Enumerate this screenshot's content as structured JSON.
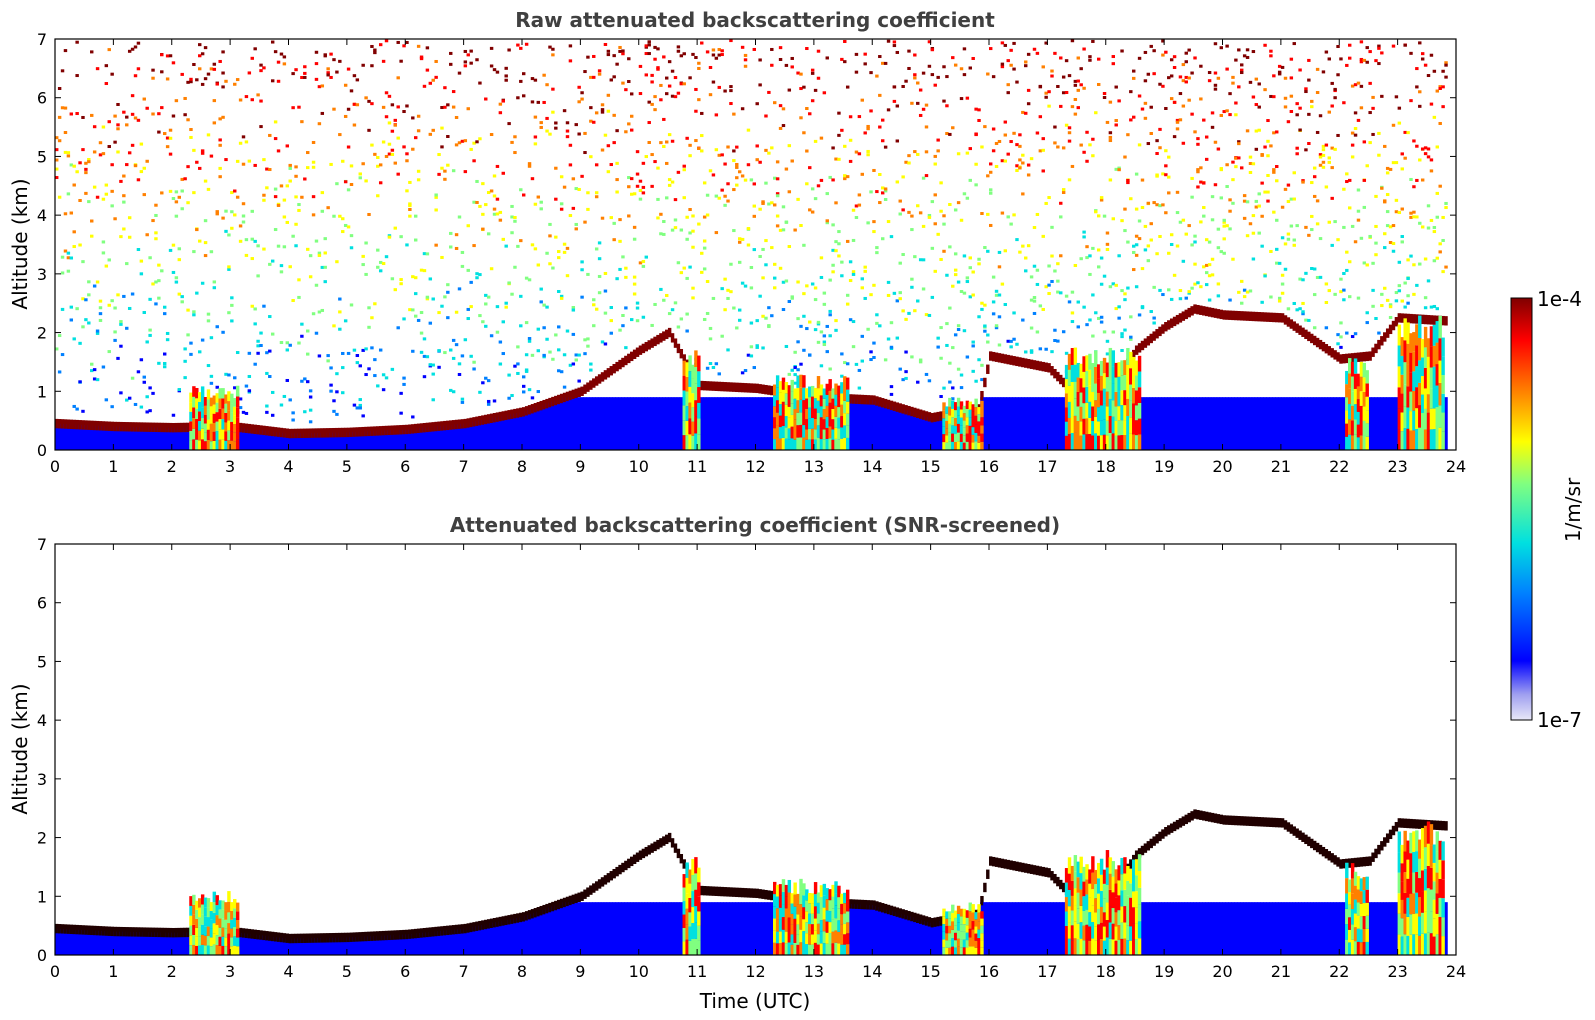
{
  "chart_data": [
    {
      "type": "heatmap",
      "title": "Raw attenuated backscattering coefficient",
      "xlabel": "",
      "ylabel": "Altitude (km)",
      "xlim": [
        0,
        24
      ],
      "ylim": [
        0,
        7
      ],
      "xticks": [
        "0",
        "1",
        "2",
        "3",
        "4",
        "5",
        "6",
        "7",
        "8",
        "9",
        "10",
        "11",
        "12",
        "13",
        "14",
        "15",
        "16",
        "17",
        "18",
        "19",
        "20",
        "21",
        "22",
        "23",
        "24"
      ],
      "yticks": [
        "0",
        "1",
        "2",
        "3",
        "4",
        "5",
        "6",
        "7"
      ],
      "data_x_extent": [
        0,
        23.85
      ],
      "boundary_layer_top_km": [
        [
          0,
          0.45
        ],
        [
          1,
          0.4
        ],
        [
          2,
          0.38
        ],
        [
          3,
          0.4
        ],
        [
          4,
          0.28
        ],
        [
          5,
          0.3
        ],
        [
          6,
          0.35
        ],
        [
          7,
          0.45
        ],
        [
          8,
          0.65
        ],
        [
          9,
          1.0
        ],
        [
          10,
          1.7
        ],
        [
          10.5,
          2.0
        ],
        [
          11,
          1.1
        ],
        [
          12,
          1.05
        ],
        [
          13,
          0.9
        ],
        [
          14,
          0.85
        ],
        [
          15,
          0.55
        ],
        [
          15.8,
          0.7
        ],
        [
          16,
          1.6
        ],
        [
          17,
          1.4
        ],
        [
          17.5,
          0.9
        ],
        [
          18,
          0.95
        ],
        [
          18.5,
          1.7
        ],
        [
          19,
          2.1
        ],
        [
          19.5,
          2.4
        ],
        [
          20,
          2.3
        ],
        [
          21,
          2.25
        ],
        [
          22,
          1.55
        ],
        [
          22.5,
          1.6
        ],
        [
          23,
          2.25
        ],
        [
          23.8,
          2.2
        ]
      ],
      "aerosol_columns": [
        {
          "t": [
            2.3,
            3.1
          ],
          "top_km": 1.1
        },
        {
          "t": [
            10.75,
            11.05
          ],
          "top_km": 1.7
        },
        {
          "t": [
            12.3,
            13.6
          ],
          "top_km": 1.3
        },
        {
          "t": [
            15.2,
            15.9
          ],
          "top_km": 0.9
        },
        {
          "t": [
            17.3,
            18.6
          ],
          "top_km": 1.8
        },
        {
          "t": [
            22.1,
            22.5
          ],
          "top_km": 1.6
        },
        {
          "t": [
            23.0,
            23.8
          ],
          "top_km": 2.3
        }
      ]
    },
    {
      "type": "heatmap",
      "title": "Attenuated backscattering coefficient (SNR-screened)",
      "xlabel": "Time (UTC)",
      "ylabel": "Altitude (km)",
      "xlim": [
        0,
        24
      ],
      "ylim": [
        0,
        7
      ],
      "xticks": [
        "0",
        "1",
        "2",
        "3",
        "4",
        "5",
        "6",
        "7",
        "8",
        "9",
        "10",
        "11",
        "12",
        "13",
        "14",
        "15",
        "16",
        "17",
        "18",
        "19",
        "20",
        "21",
        "22",
        "23",
        "24"
      ],
      "yticks": [
        "0",
        "1",
        "2",
        "3",
        "4",
        "5",
        "6",
        "7"
      ]
    }
  ],
  "colorbar": {
    "label": "1/m/sr",
    "max_label": "1e-4",
    "min_label": "1e-7",
    "scale": "log",
    "colormap": "jet",
    "colors": [
      "#e8e8f8",
      "#a0a0f0",
      "#0000ff",
      "#0080ff",
      "#00e0e0",
      "#80ff80",
      "#ffff00",
      "#ff8000",
      "#ff0000",
      "#800000"
    ]
  }
}
